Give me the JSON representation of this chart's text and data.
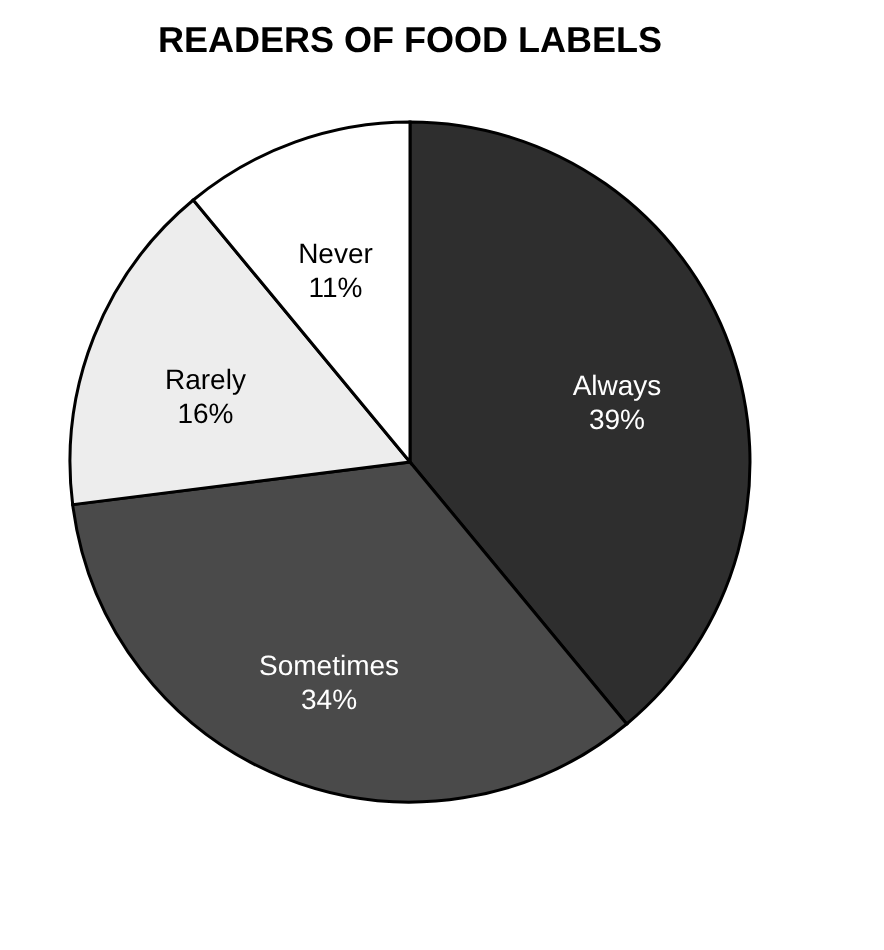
{
  "chart_data": {
    "type": "pie",
    "title": "READERS OF FOOD LABELS",
    "categories": [
      "Always",
      "Sometimes",
      "Rarely",
      "Never"
    ],
    "values": [
      39,
      34,
      16,
      11
    ],
    "value_labels": [
      "39%",
      "34%",
      "16%",
      "11%"
    ],
    "colors": [
      "#2e2e2e",
      "#4a4a4a",
      "#ededed",
      "#ffffff"
    ]
  }
}
